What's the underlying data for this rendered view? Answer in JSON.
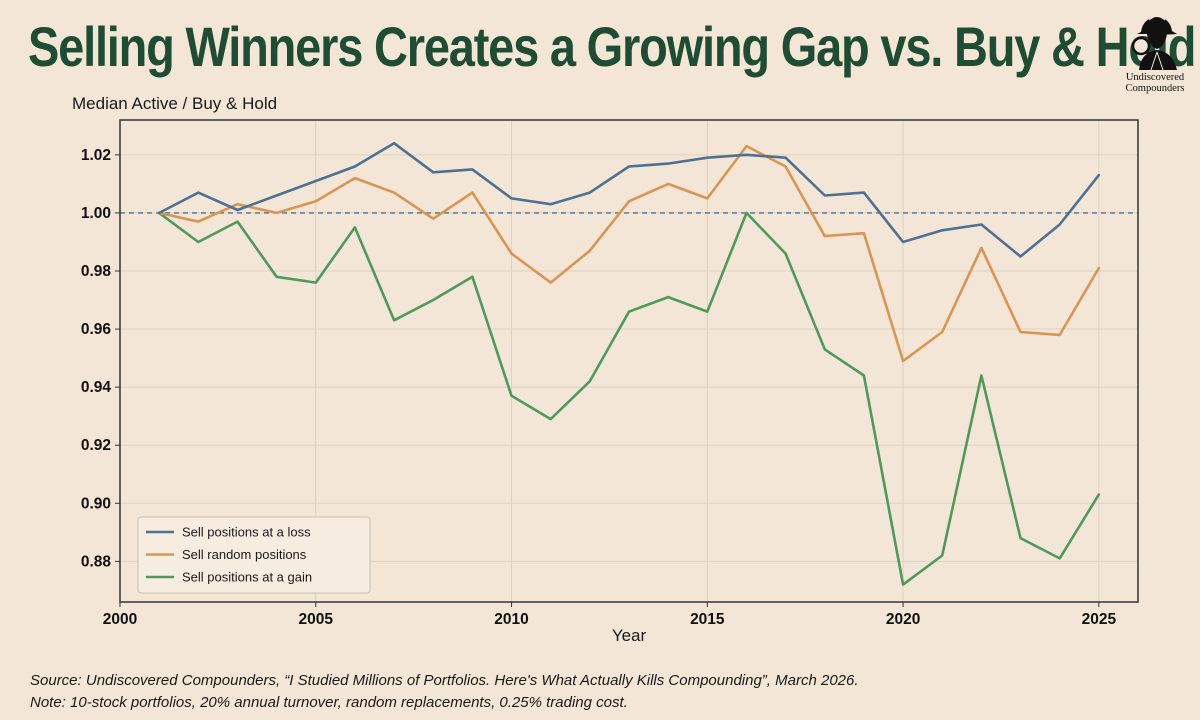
{
  "header": {
    "title": "Selling Winners Creates a Growing Gap vs. Buy & Hold",
    "brand_line1": "Undiscovered",
    "brand_line2": "Compounders"
  },
  "footer": {
    "source": "Source: Undiscovered Compounders, “I Studied Millions of Portfolios. Here's What Actually Kills Compounding”, March 2026.",
    "note": "Note: 10-stock portfolios, 20% annual turnover, random replacements, 0.25% trading cost."
  },
  "chart_data": {
    "type": "line",
    "title": "Selling Winners Creates a Growing Gap vs. Buy & Hold",
    "ylabel": "Median Active / Buy & Hold",
    "xlabel": "Year",
    "xlim": [
      2000,
      2026
    ],
    "ylim": [
      0.866,
      1.032
    ],
    "x_ticks": [
      "2000",
      "2005",
      "2010",
      "2015",
      "2020",
      "2025"
    ],
    "y_ticks": [
      "0.88",
      "0.90",
      "0.92",
      "0.94",
      "0.96",
      "0.98",
      "1.00",
      "1.02"
    ],
    "reference_line": 1.0,
    "grid": true,
    "legend_position": "lower-left",
    "x": [
      2001,
      2002,
      2003,
      2004,
      2005,
      2006,
      2007,
      2008,
      2009,
      2010,
      2011,
      2012,
      2013,
      2014,
      2015,
      2016,
      2017,
      2018,
      2019,
      2020,
      2021,
      2022,
      2023,
      2024,
      2025
    ],
    "series": [
      {
        "name": "Sell positions at a loss",
        "color": "#4e7193",
        "values": [
          1.0,
          1.007,
          1.001,
          1.006,
          1.011,
          1.016,
          1.024,
          1.014,
          1.015,
          1.005,
          1.003,
          1.007,
          1.016,
          1.017,
          1.019,
          1.02,
          1.019,
          1.006,
          1.007,
          0.99,
          0.994,
          0.996,
          0.985,
          0.996,
          1.013
        ]
      },
      {
        "name": "Sell random positions",
        "color": "#d99552",
        "values": [
          1.0,
          0.997,
          1.003,
          1.0,
          1.004,
          1.012,
          1.007,
          0.998,
          1.007,
          0.986,
          0.976,
          0.987,
          1.004,
          1.01,
          1.005,
          1.023,
          1.016,
          0.992,
          0.993,
          0.949,
          0.959,
          0.988,
          0.959,
          0.958,
          0.981
        ]
      },
      {
        "name": "Sell positions at a gain",
        "color": "#4e9a5c",
        "values": [
          1.0,
          0.99,
          0.997,
          0.978,
          0.976,
          0.995,
          0.963,
          0.97,
          0.978,
          0.937,
          0.929,
          0.942,
          0.966,
          0.971,
          0.966,
          1.0,
          0.986,
          0.953,
          0.944,
          0.872,
          0.882,
          0.944,
          0.888,
          0.881,
          0.903
        ]
      }
    ]
  }
}
